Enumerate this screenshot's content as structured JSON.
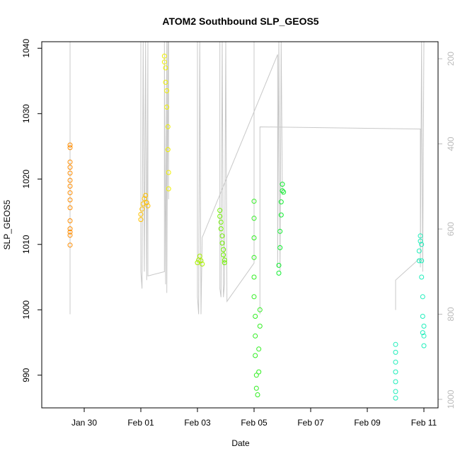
{
  "chart_data": {
    "type": "scatter",
    "title": "ATOM2 Southbound SLP_GEOS5",
    "xlabel": "Date",
    "ylabel": "SLP_GEOS5",
    "ylim": [
      985,
      1041
    ],
    "xlim": [
      "2017-01-28T12:00",
      "2017-02-11T12:00"
    ],
    "x_ticks": [
      {
        "label": "Jan 30",
        "date": "2017-01-30"
      },
      {
        "label": "Feb 01",
        "date": "2017-02-01"
      },
      {
        "label": "Feb 03",
        "date": "2017-02-03"
      },
      {
        "label": "Feb 05",
        "date": "2017-02-05"
      },
      {
        "label": "Feb 07",
        "date": "2017-02-07"
      },
      {
        "label": "Feb 09",
        "date": "2017-02-09"
      },
      {
        "label": "Feb 11",
        "date": "2017-02-11"
      }
    ],
    "y_ticks": [
      990,
      1000,
      1010,
      1020,
      1030,
      1040
    ],
    "right_axis": {
      "range": [
        1020,
        160
      ],
      "ticks": [
        200,
        400,
        600,
        800,
        1000
      ],
      "color": "#bbbbbb"
    },
    "grid": false,
    "legend": "none",
    "series": [
      {
        "color": "#ff8c00",
        "points": [
          [
            "2017-01-29T12:00",
            1025.2
          ],
          [
            "2017-01-29T12:00",
            1024.8
          ],
          [
            "2017-01-29T12:00",
            1022.6
          ],
          [
            "2017-01-29T12:00",
            1021.8
          ],
          [
            "2017-01-29T12:00",
            1020.9
          ],
          [
            "2017-01-29T12:00",
            1019.8
          ],
          [
            "2017-01-29T12:00",
            1018.9
          ],
          [
            "2017-01-29T12:00",
            1017.9
          ],
          [
            "2017-01-29T12:00",
            1016.8
          ],
          [
            "2017-01-29T12:00",
            1015.6
          ],
          [
            "2017-01-29T12:00",
            1013.6
          ],
          [
            "2017-01-29T12:00",
            1012.4
          ],
          [
            "2017-01-29T12:00",
            1011.9
          ],
          [
            "2017-01-29T12:00",
            1011.4
          ],
          [
            "2017-01-29T12:00",
            1009.9
          ]
        ]
      },
      {
        "color": "#ffc000",
        "points": [
          [
            "2017-02-01T00:00",
            1013.8
          ],
          [
            "2017-02-01T00:00",
            1014.6
          ],
          [
            "2017-02-01T01:00",
            1015.4
          ],
          [
            "2017-02-01T02:00",
            1016.2
          ],
          [
            "2017-02-01T03:00",
            1017.0
          ],
          [
            "2017-02-01T04:00",
            1017.5
          ],
          [
            "2017-02-01T05:00",
            1016.4
          ],
          [
            "2017-02-01T06:00",
            1015.9
          ]
        ]
      },
      {
        "color": "#f0f000",
        "points": [
          [
            "2017-02-01T20:00",
            1038.8
          ],
          [
            "2017-02-01T20:00",
            1037.9
          ],
          [
            "2017-02-01T21:00",
            1037.0
          ],
          [
            "2017-02-01T21:00",
            1034.8
          ],
          [
            "2017-02-01T22:00",
            1033.5
          ],
          [
            "2017-02-01T22:00",
            1031.0
          ],
          [
            "2017-02-01T23:00",
            1028.0
          ],
          [
            "2017-02-01T23:00",
            1024.5
          ],
          [
            "2017-02-01T23:30",
            1021.0
          ],
          [
            "2017-02-01T23:30",
            1018.5
          ]
        ]
      },
      {
        "color": "#a8f000",
        "points": [
          [
            "2017-02-03T00:00",
            1007.2
          ],
          [
            "2017-02-03T01:00",
            1007.6
          ],
          [
            "2017-02-03T02:00",
            1008.2
          ],
          [
            "2017-02-03T03:00",
            1007.5
          ],
          [
            "2017-02-03T04:00",
            1007.0
          ]
        ]
      },
      {
        "color": "#70f000",
        "points": [
          [
            "2017-02-03T19:00",
            1015.2
          ],
          [
            "2017-02-03T19:00",
            1014.3
          ],
          [
            "2017-02-03T20:00",
            1013.4
          ],
          [
            "2017-02-03T20:00",
            1012.4
          ],
          [
            "2017-02-03T21:00",
            1011.3
          ],
          [
            "2017-02-03T21:00",
            1010.2
          ],
          [
            "2017-02-03T22:00",
            1009.2
          ],
          [
            "2017-02-03T22:00",
            1008.4
          ],
          [
            "2017-02-03T23:00",
            1007.6
          ],
          [
            "2017-02-03T23:00",
            1007.2
          ]
        ]
      },
      {
        "color": "#30ee20",
        "points": [
          [
            "2017-02-05T00:00",
            1016.6
          ],
          [
            "2017-02-05T00:00",
            1014.0
          ],
          [
            "2017-02-05T00:00",
            1011.0
          ],
          [
            "2017-02-05T00:00",
            1008.0
          ],
          [
            "2017-02-05T00:00",
            1005.0
          ],
          [
            "2017-02-05T00:00",
            1002.0
          ],
          [
            "2017-02-05T01:00",
            999.0
          ],
          [
            "2017-02-05T01:00",
            996.0
          ],
          [
            "2017-02-05T01:00",
            993.0
          ],
          [
            "2017-02-05T02:00",
            990.0
          ],
          [
            "2017-02-05T02:00",
            988.0
          ],
          [
            "2017-02-05T03:00",
            987.0
          ],
          [
            "2017-02-05T04:00",
            990.5
          ],
          [
            "2017-02-05T04:00",
            994.0
          ],
          [
            "2017-02-05T05:00",
            997.5
          ],
          [
            "2017-02-05T05:00",
            1000.0
          ]
        ]
      },
      {
        "color": "#10ee30",
        "points": [
          [
            "2017-02-05T21:00",
            1005.6
          ],
          [
            "2017-02-05T21:00",
            1006.8
          ],
          [
            "2017-02-05T22:00",
            1009.5
          ],
          [
            "2017-02-05T22:00",
            1012.0
          ],
          [
            "2017-02-05T23:00",
            1014.5
          ],
          [
            "2017-02-05T23:00",
            1016.5
          ],
          [
            "2017-02-06T00:00",
            1018.2
          ],
          [
            "2017-02-06T00:00",
            1019.2
          ],
          [
            "2017-02-06T01:00",
            1018.0
          ]
        ]
      },
      {
        "color": "#20eebb",
        "points": [
          [
            "2017-02-10T00:00",
            994.7
          ],
          [
            "2017-02-10T00:00",
            993.5
          ],
          [
            "2017-02-10T00:00",
            992.0
          ],
          [
            "2017-02-10T00:00",
            990.5
          ],
          [
            "2017-02-10T00:00",
            989.0
          ],
          [
            "2017-02-10T00:00",
            987.5
          ],
          [
            "2017-02-10T00:00",
            986.5
          ]
        ]
      },
      {
        "color": "#20eebb",
        "points": [
          [
            "2017-02-10T20:00",
            1007.5
          ],
          [
            "2017-02-10T20:00",
            1009.0
          ],
          [
            "2017-02-10T21:00",
            1010.5
          ],
          [
            "2017-02-10T21:00",
            1011.3
          ],
          [
            "2017-02-10T22:00",
            1010.0
          ],
          [
            "2017-02-10T22:00",
            1007.5
          ],
          [
            "2017-02-10T22:00",
            1005.0
          ],
          [
            "2017-02-10T23:00",
            1002.0
          ],
          [
            "2017-02-10T23:00",
            999.0
          ],
          [
            "2017-02-10T23:00",
            996.5
          ],
          [
            "2017-02-11T00:00",
            994.5
          ],
          [
            "2017-02-11T00:00",
            996.0
          ],
          [
            "2017-02-11T00:00",
            997.5
          ]
        ]
      }
    ],
    "altitude_traces": [
      {
        "points": [
          [
            "2017-01-29T12:00",
            160
          ],
          [
            "2017-01-29T12:00",
            200
          ],
          [
            "2017-01-29T12:00",
            300
          ],
          [
            "2017-01-29T12:00",
            400
          ],
          [
            "2017-01-29T12:00",
            500
          ],
          [
            "2017-01-29T12:00",
            600
          ],
          [
            "2017-01-29T12:00",
            700
          ],
          [
            "2017-01-29T12:00",
            800
          ],
          [
            "2017-01-29T12:00",
            800
          ],
          [
            "2017-01-29T12:00",
            700
          ],
          [
            "2017-01-29T12:00",
            500
          ],
          [
            "2017-01-29T12:00",
            300
          ],
          [
            "2017-01-29T12:00",
            160
          ]
        ]
      },
      {
        "points": [
          [
            "2017-02-01T00:00",
            160
          ],
          [
            "2017-02-01T00:00",
            700
          ],
          [
            "2017-02-01T01:00",
            740
          ],
          [
            "2017-02-01T02:00",
            160
          ],
          [
            "2017-02-01T03:00",
            700
          ],
          [
            "2017-02-01T04:00",
            160
          ],
          [
            "2017-02-01T05:00",
            720
          ],
          [
            "2017-02-01T06:00",
            160
          ],
          [
            "2017-02-01T06:00",
            710
          ],
          [
            "2017-02-01T20:00",
            700
          ],
          [
            "2017-02-01T20:00",
            160
          ],
          [
            "2017-02-01T21:00",
            730
          ],
          [
            "2017-02-01T22:00",
            160
          ],
          [
            "2017-02-01T22:00",
            750
          ],
          [
            "2017-02-01T23:00",
            160
          ],
          [
            "2017-02-01T23:30",
            530
          ],
          [
            "2017-02-01T23:30",
            160
          ]
        ]
      },
      {
        "points": [
          [
            "2017-02-03T00:00",
            160
          ],
          [
            "2017-02-03T00:00",
            760
          ],
          [
            "2017-02-03T01:00",
            800
          ],
          [
            "2017-02-03T02:00",
            160
          ],
          [
            "2017-02-03T03:00",
            800
          ],
          [
            "2017-02-03T04:00",
            620
          ],
          [
            "2017-02-05T20:00",
            190
          ],
          [
            "2017-02-05T20:00",
            690
          ],
          [
            "2017-02-05T21:00",
            160
          ],
          [
            "2017-02-05T22:00",
            700
          ],
          [
            "2017-02-05T23:00",
            160
          ],
          [
            "2017-02-06T00:00",
            520
          ]
        ]
      },
      {
        "points": [
          [
            "2017-02-03T19:00",
            160
          ],
          [
            "2017-02-03T19:00",
            740
          ],
          [
            "2017-02-03T20:00",
            760
          ],
          [
            "2017-02-03T21:00",
            160
          ],
          [
            "2017-02-03T22:00",
            760
          ],
          [
            "2017-02-03T23:00",
            730
          ],
          [
            "2017-02-04T00:00",
            160
          ],
          [
            "2017-02-04T01:00",
            770
          ],
          [
            "2017-02-05T00:00",
            680
          ],
          [
            "2017-02-05T00:00",
            160
          ]
        ]
      },
      {
        "points": [
          [
            "2017-02-05T05:00",
            800
          ],
          [
            "2017-02-05T05:00",
            360
          ],
          [
            "2017-02-10T21:00",
            365
          ],
          [
            "2017-02-10T21:00",
            690
          ],
          [
            "2017-02-10T22:00",
            160
          ],
          [
            "2017-02-10T23:00",
            700
          ],
          [
            "2017-02-11T00:00",
            160
          ]
        ]
      },
      {
        "points": [
          [
            "2017-02-10T00:00",
            790
          ],
          [
            "2017-02-10T00:00",
            720
          ],
          [
            "2017-02-10T20:00",
            670
          ]
        ]
      }
    ]
  }
}
